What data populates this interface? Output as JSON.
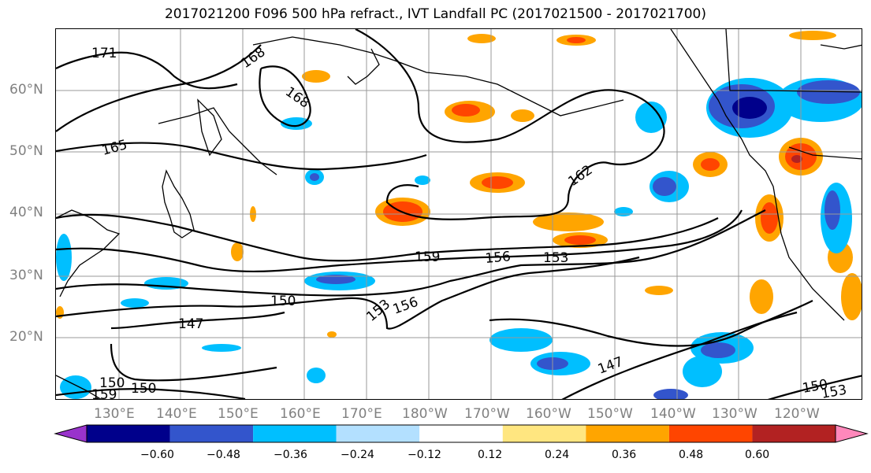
{
  "title": "2017021200 F096 500 hPa refract., IVT Landfall PC (2017021500 - 2017021700)",
  "lat_labels": [
    "60°N",
    "50°N",
    "40°N",
    "30°N",
    "20°N"
  ],
  "lon_labels": [
    "130°E",
    "140°E",
    "150°E",
    "160°E",
    "170°E",
    "180°W",
    "170°W",
    "160°W",
    "150°W",
    "140°W",
    "130°W",
    "120°W"
  ],
  "contour_labels": [
    "171",
    "168",
    "168",
    "165",
    "162",
    "159",
    "156",
    "153",
    "150",
    "153",
    "156",
    "147",
    "147",
    "150",
    "150",
    "159",
    "150",
    "153"
  ],
  "colorbar": {
    "colors": [
      "#9933cc",
      "#00008b",
      "#3355cc",
      "#00bfff",
      "#b3e0ff",
      "#ffffff",
      "#ffe680",
      "#ffa500",
      "#ff4500",
      "#b22222",
      "#ff88bb"
    ],
    "ticks": [
      "−0.60",
      "−0.48",
      "−0.36",
      "−0.24",
      "−0.12",
      "0.12",
      "0.24",
      "0.36",
      "0.48",
      "0.60"
    ]
  }
}
